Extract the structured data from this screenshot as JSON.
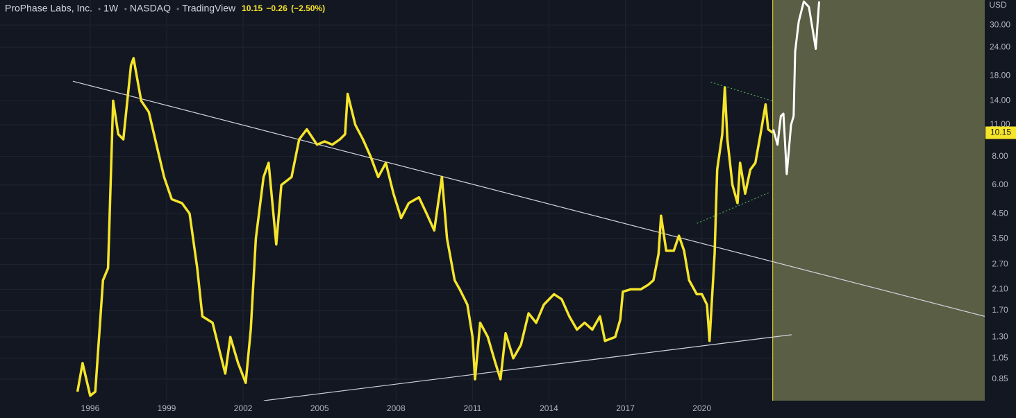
{
  "chart_data": {
    "type": "line",
    "title": "ProPhase Labs, Inc.",
    "interval": "1W",
    "exchange": "NASDAQ",
    "source": "TradingView",
    "last_price": 10.15,
    "change": {
      "value": -0.26,
      "label": "−0.26"
    },
    "change_pct": {
      "value": -2.5,
      "label": "(−2.50%)"
    },
    "currency": "USD",
    "log_scale": true,
    "grid": true,
    "xlim": [
      1992.46,
      2031.1
    ],
    "xticks": [
      1996,
      1999,
      2002,
      2005,
      2008,
      2011,
      2014,
      2017,
      2020
    ],
    "ylim": [
      0.685,
      38.6
    ],
    "yticks": [
      {
        "value": 30,
        "label": "30.00"
      },
      {
        "value": 24,
        "label": "24.00"
      },
      {
        "value": 18,
        "label": "18.00"
      },
      {
        "value": 14,
        "label": "14.00"
      },
      {
        "value": 11,
        "label": "11.00"
      },
      {
        "value": 8,
        "label": "8.00"
      },
      {
        "value": 6,
        "label": "6.00"
      },
      {
        "value": 4.5,
        "label": "4.50"
      },
      {
        "value": 3.5,
        "label": "3.50"
      },
      {
        "value": 2.7,
        "label": "2.70"
      },
      {
        "value": 2.1,
        "label": "2.10"
      },
      {
        "value": 1.7,
        "label": "1.70"
      },
      {
        "value": 1.3,
        "label": "1.30"
      },
      {
        "value": 1.05,
        "label": "1.05"
      },
      {
        "value": 0.85,
        "label": "0.85"
      }
    ],
    "shade": {
      "from": 2022.78,
      "color": "#5a5e45",
      "border_color": "#f5e52a"
    },
    "series": [
      {
        "color": "#f5e52a",
        "width": 3.5,
        "x": [
          1995.5,
          1995.7,
          1996.0,
          1996.2,
          1996.5,
          1996.7,
          1996.9,
          1997.1,
          1997.3,
          1997.6,
          1997.7,
          1998.0,
          1998.3,
          1998.6,
          1998.9,
          1999.2,
          1999.6,
          1999.9,
          2000.2,
          2000.4,
          2000.8,
          2001.1,
          2001.3,
          2001.5,
          2001.8,
          2002.1,
          2002.3,
          2002.5,
          2002.8,
          2003.0,
          2003.3,
          2003.5,
          2003.9,
          2004.2,
          2004.5,
          2004.9,
          2005.2,
          2005.5,
          2005.8,
          2006.0,
          2006.1,
          2006.4,
          2006.7,
          2007.0,
          2007.3,
          2007.6,
          2007.9,
          2008.2,
          2008.5,
          2008.9,
          2009.2,
          2009.5,
          2009.8,
          2010.0,
          2010.3,
          2010.5,
          2010.8,
          2011.0,
          2011.1,
          2011.3,
          2011.6,
          2011.9,
          2012.1,
          2012.3,
          2012.6,
          2012.9,
          2013.2,
          2013.5,
          2013.8,
          2014.2,
          2014.5,
          2014.8,
          2015.1,
          2015.4,
          2015.7,
          2016.0,
          2016.2,
          2016.6,
          2016.8,
          2016.9,
          2017.2,
          2017.6,
          2017.9,
          2018.1,
          2018.3,
          2018.4,
          2018.6,
          2018.9,
          2019.1,
          2019.3,
          2019.5,
          2019.8,
          2020.0,
          2020.2,
          2020.3,
          2020.5,
          2020.6,
          2020.8,
          2020.9,
          2021.0,
          2021.2,
          2021.4,
          2021.5,
          2021.7,
          2021.9,
          2022.1,
          2022.3,
          2022.5,
          2022.6,
          2022.78
        ],
        "values": [
          0.75,
          1.0,
          0.72,
          0.75,
          2.3,
          2.6,
          14,
          10,
          9.5,
          20,
          21.5,
          14,
          12.5,
          9,
          6.5,
          5.2,
          5,
          4.5,
          2.6,
          1.6,
          1.5,
          1.1,
          0.9,
          1.3,
          1.0,
          0.82,
          1.4,
          3.5,
          6.5,
          7.5,
          3.3,
          6,
          6.5,
          9.5,
          10.5,
          9,
          9.3,
          9,
          9.5,
          10,
          15,
          11,
          9.5,
          8,
          6.5,
          7.5,
          5.5,
          4.3,
          5,
          5.3,
          4.5,
          3.8,
          6.5,
          3.5,
          2.3,
          2.1,
          1.8,
          1.3,
          0.85,
          1.5,
          1.3,
          1.0,
          0.85,
          1.35,
          1.05,
          1.2,
          1.65,
          1.5,
          1.8,
          2.0,
          1.9,
          1.6,
          1.4,
          1.5,
          1.4,
          1.6,
          1.25,
          1.3,
          1.55,
          2.05,
          2.1,
          2.1,
          2.2,
          2.3,
          3.0,
          4.4,
          3.1,
          3.1,
          3.6,
          3.1,
          2.3,
          2.0,
          2.0,
          1.8,
          1.25,
          3.0,
          7,
          10,
          16,
          9.5,
          6,
          5,
          7.5,
          5.5,
          7,
          7.5,
          10,
          13.5,
          10.5,
          10.15
        ]
      },
      {
        "color": "#ffffff",
        "width": 3,
        "x": [
          2022.8,
          2022.97,
          2023.1,
          2023.2,
          2023.33,
          2023.5,
          2023.6,
          2023.66,
          2023.8,
          2024.0,
          2024.2,
          2024.34,
          2024.47,
          2024.6
        ],
        "values": [
          10.5,
          9,
          12,
          12.3,
          6.7,
          11,
          12,
          23,
          31,
          38,
          36,
          29,
          23.6,
          38
        ]
      }
    ],
    "lines": [
      {
        "color": "#d1d4dc",
        "style": "solid",
        "x": [
          1995.32,
          2031.1
        ],
        "values": [
          17.05,
          1.6
        ]
      },
      {
        "color": "#d1d4dc",
        "style": "solid",
        "x": [
          2002.81,
          2023.52
        ],
        "values": [
          0.685,
          1.33
        ]
      },
      {
        "color": "#4caf50",
        "style": "dotted",
        "x": [
          2020.35,
          2022.75
        ],
        "values": [
          16.9,
          14.0
        ]
      },
      {
        "color": "#4caf50",
        "style": "dotted",
        "x": [
          2019.81,
          2022.67
        ],
        "values": [
          4.08,
          5.58
        ]
      }
    ]
  }
}
